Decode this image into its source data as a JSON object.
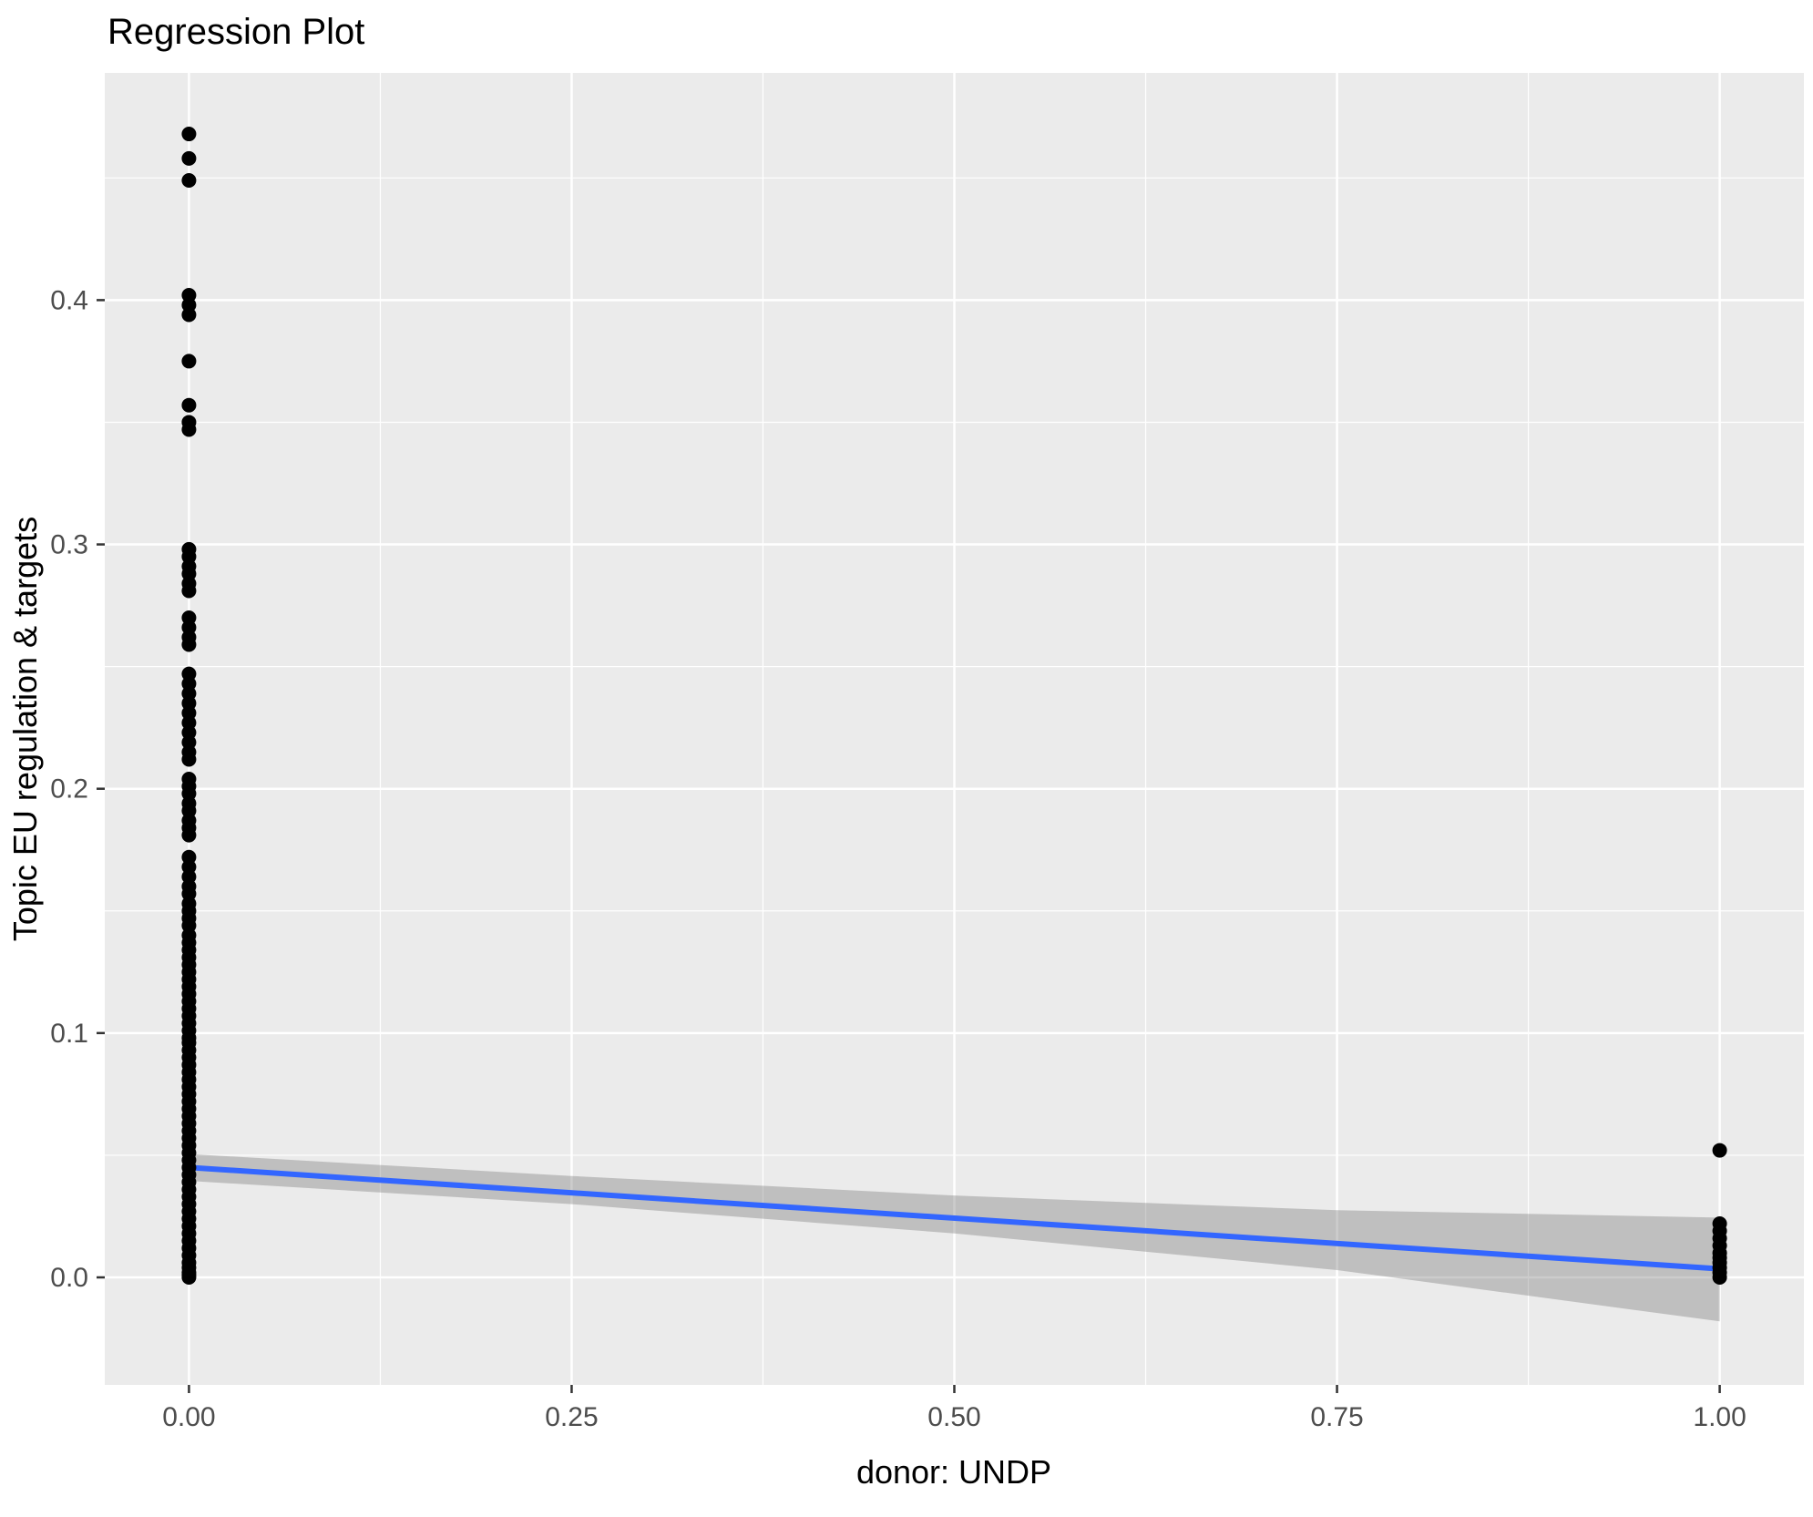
{
  "chart_data": {
    "type": "scatter",
    "title": "Regression Plot",
    "xlabel": "donor: UNDP",
    "ylabel": "Topic EU regulation & targets",
    "x_tick_values": [
      0,
      0.25,
      0.5,
      0.75,
      1
    ],
    "x_tick_labels": [
      "0.00",
      "0.25",
      "0.50",
      "0.75",
      "1.00"
    ],
    "y_tick_values": [
      0,
      0.1,
      0.2,
      0.3,
      0.4
    ],
    "y_tick_labels": [
      "0.0",
      "0.1",
      "0.2",
      "0.3",
      "0.4"
    ],
    "x_minor_ticks": [
      0.125,
      0.375,
      0.625,
      0.875
    ],
    "y_minor_ticks": [
      0.05,
      0.15,
      0.25,
      0.35,
      0.45
    ],
    "xlim": [
      -0.055,
      1.055
    ],
    "ylim": [
      -0.044,
      0.493
    ],
    "grid": true,
    "legend": "none",
    "colors": {
      "panel_bg": "#EBEBEB",
      "grid": "#FFFFFF",
      "points": "#000000",
      "line": "#3366FF",
      "ribbon": "rgba(120,120,120,0.38)",
      "tick_text": "#4D4D4D",
      "tick_mark": "#333333"
    },
    "series": [
      {
        "name": "observations at donor=0",
        "x": 0,
        "y": [
          0.468,
          0.458,
          0.449,
          0.402,
          0.398,
          0.394,
          0.375,
          0.357,
          0.35,
          0.347,
          0.298,
          0.295,
          0.291,
          0.288,
          0.284,
          0.281,
          0.27,
          0.266,
          0.262,
          0.259,
          0.247,
          0.243,
          0.239,
          0.235,
          0.231,
          0.227,
          0.223,
          0.219,
          0.215,
          0.212,
          0.204,
          0.201,
          0.198,
          0.194,
          0.191,
          0.187,
          0.184,
          0.181,
          0.172,
          0.168,
          0.164,
          0.16,
          0.157,
          0.153,
          0.15,
          0.147,
          0.144,
          0.14,
          0.137,
          0.134,
          0.131,
          0.128,
          0.125,
          0.122,
          0.119,
          0.116,
          0.113,
          0.11,
          0.107,
          0.104,
          0.101,
          0.098,
          0.096,
          0.093,
          0.09,
          0.087,
          0.084,
          0.081,
          0.078,
          0.075,
          0.072,
          0.069,
          0.066,
          0.063,
          0.06,
          0.057,
          0.054,
          0.051,
          0.048,
          0.045,
          0.042,
          0.039,
          0.036,
          0.033,
          0.03,
          0.027,
          0.024,
          0.021,
          0.018,
          0.015,
          0.012,
          0.009,
          0.006,
          0.004,
          0.002,
          0.001,
          0.0
        ]
      },
      {
        "name": "observations at donor=1",
        "x": 1,
        "y": [
          0.052,
          0.022,
          0.019,
          0.016,
          0.013,
          0.01,
          0.008,
          0.006,
          0.004,
          0.002,
          0.0
        ]
      }
    ],
    "regression_line": {
      "x": [
        0,
        1
      ],
      "y": [
        0.045,
        0.0035
      ]
    },
    "confidence_band": {
      "x": [
        0,
        0.25,
        0.5,
        0.75,
        1
      ],
      "upper": [
        0.0505,
        0.0415,
        0.0335,
        0.0275,
        0.0245
      ],
      "lower": [
        0.0395,
        0.03,
        0.018,
        0.003,
        -0.018
      ]
    }
  }
}
